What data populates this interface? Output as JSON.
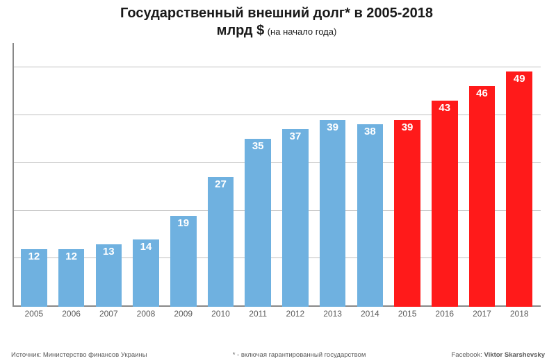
{
  "chart": {
    "type": "bar",
    "title_line1": "Государственный внешний долг* в 2005-2018",
    "title_line2_big": "млрд $",
    "title_line2_small": "(на начало года)",
    "title_fontsize": 20,
    "subtitle_fontsize": 13,
    "categories": [
      "2005",
      "2006",
      "2007",
      "2008",
      "2009",
      "2010",
      "2011",
      "2012",
      "2013",
      "2014",
      "2015",
      "2016",
      "2017",
      "2018"
    ],
    "values": [
      12,
      12,
      13,
      14,
      19,
      27,
      35,
      37,
      39,
      38,
      39,
      43,
      46,
      49
    ],
    "bar_colors": [
      "#6fb1e0",
      "#6fb1e0",
      "#6fb1e0",
      "#6fb1e0",
      "#6fb1e0",
      "#6fb1e0",
      "#6fb1e0",
      "#6fb1e0",
      "#6fb1e0",
      "#6fb1e0",
      "#ff1a1a",
      "#ff1a1a",
      "#ff1a1a",
      "#ff1a1a"
    ],
    "value_label_color": "#ffffff",
    "value_label_fontsize": 15,
    "value_label_fontweight": "700",
    "ylim": [
      0,
      55
    ],
    "gridline_values": [
      10,
      20,
      30,
      40,
      50
    ],
    "grid_color": "#bfbfbf",
    "axis_color": "#888888",
    "background_color": "#ffffff",
    "bar_width": 0.7,
    "xaxis_fontsize": 12,
    "xaxis_color": "#5a5a5a"
  },
  "footer": {
    "source_label": "Источник: Министерство финансов Украины",
    "note": "* - включая гарантированный государством",
    "credit_label": "Facebook:",
    "credit_name": "Viktor Skarshevsky",
    "fontsize": 9.5,
    "color": "#5a5a5a"
  }
}
